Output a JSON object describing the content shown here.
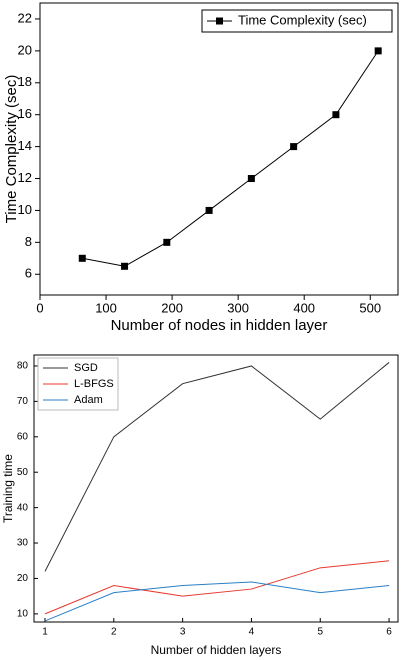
{
  "chart_data": [
    {
      "type": "line",
      "xlabel": "Number of nodes in hidden layer",
      "ylabel": "Time Complexity (sec)",
      "x": [
        64,
        128,
        192,
        256,
        320,
        384,
        448,
        512
      ],
      "series": [
        {
          "name": "Time Complexity (sec)",
          "color": "#000000",
          "marker": "square",
          "values": [
            7,
            6.5,
            8,
            10,
            12,
            14,
            16,
            20
          ]
        }
      ],
      "xlim": [
        0,
        542
      ],
      "xticks": [
        0,
        100,
        200,
        300,
        400,
        500
      ],
      "ylim": [
        4.7,
        23
      ],
      "yticks": [
        6,
        8,
        10,
        12,
        14,
        16,
        18,
        20,
        22
      ],
      "legend": "upper-right"
    },
    {
      "type": "line",
      "xlabel": "Number of hidden layers",
      "ylabel": "Training time",
      "x": [
        1,
        2,
        3,
        4,
        5,
        6
      ],
      "series": [
        {
          "name": "SGD",
          "color": "#333333",
          "values": [
            22,
            60,
            75,
            80,
            65,
            81
          ]
        },
        {
          "name": "L-BFGS",
          "color": "#e8382e",
          "values": [
            10,
            18,
            15,
            17,
            23,
            25
          ]
        },
        {
          "name": "Adam",
          "color": "#2a7fc8",
          "values": [
            8,
            16,
            18,
            19,
            16,
            18
          ]
        }
      ],
      "xlim": [
        0.84,
        6.13
      ],
      "xticks": [
        1,
        2,
        3,
        4,
        5,
        6
      ],
      "ylim": [
        7.7,
        83.1
      ],
      "yticks": [
        10,
        20,
        30,
        40,
        50,
        60,
        70,
        80
      ],
      "legend": "upper-left"
    }
  ]
}
